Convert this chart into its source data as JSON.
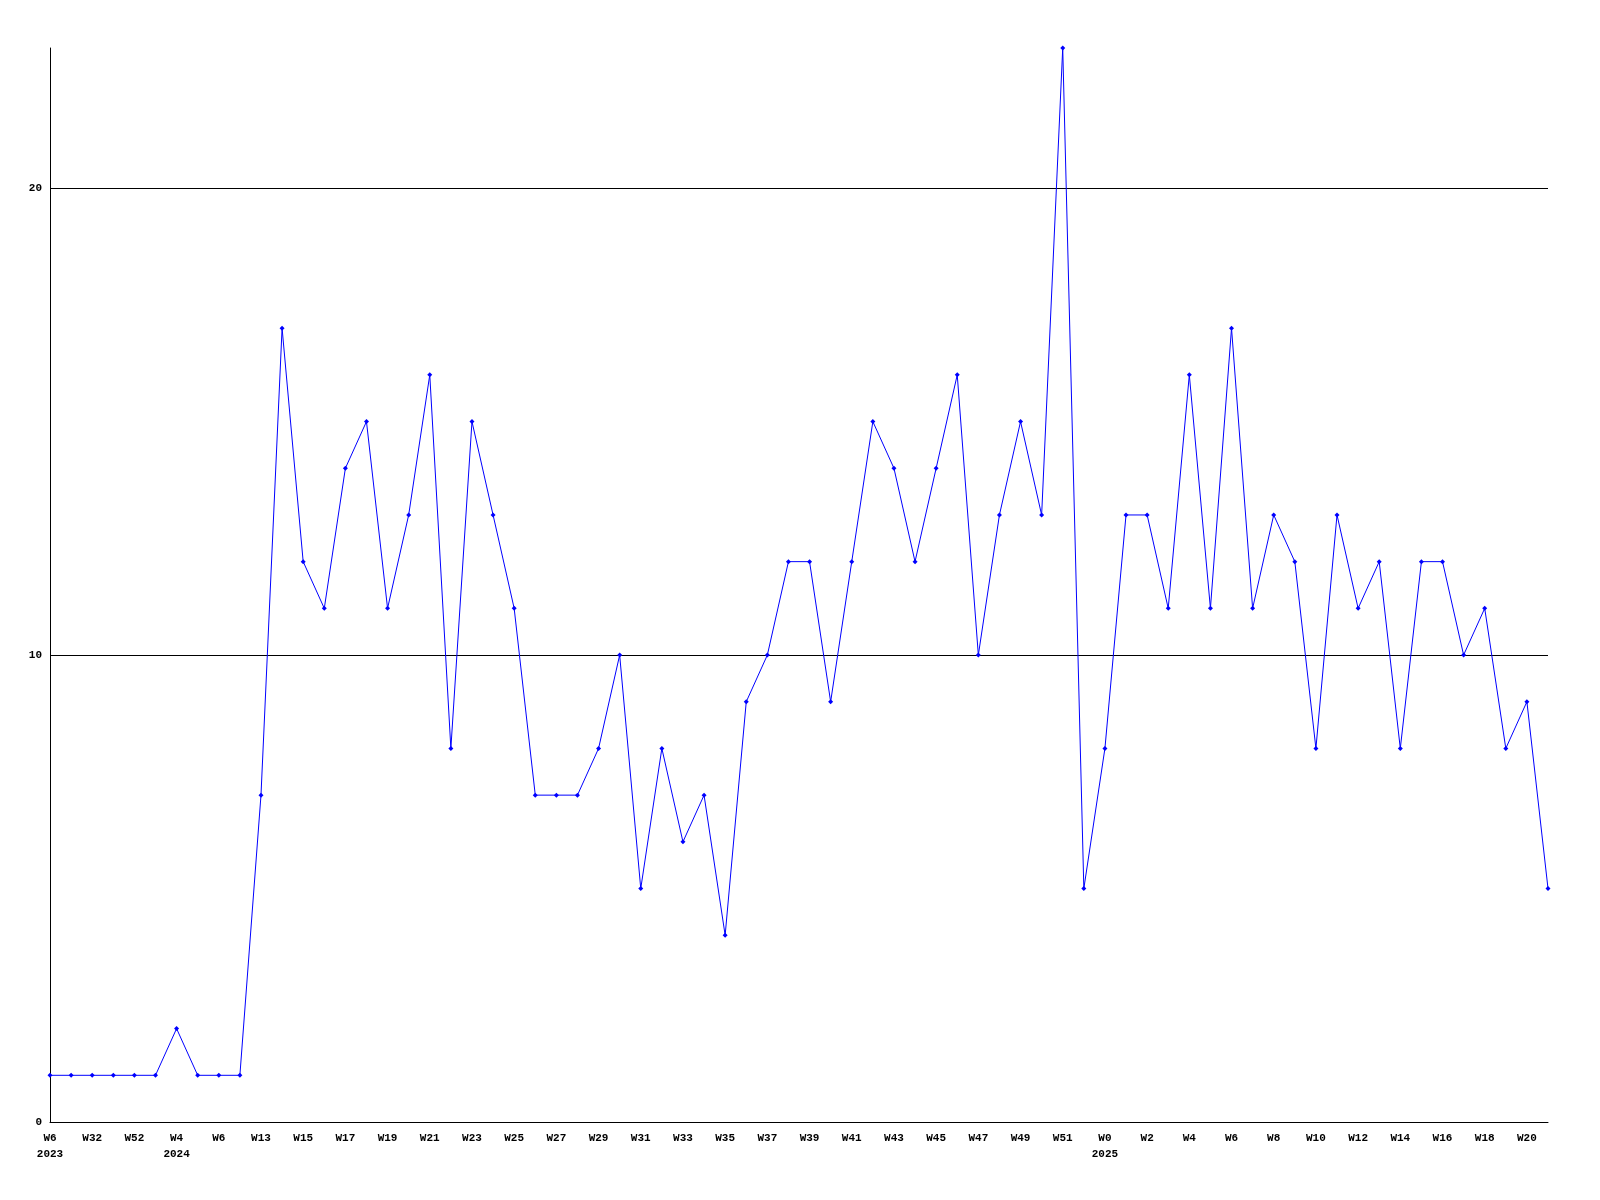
{
  "chart_data": {
    "type": "line",
    "categories": [
      "W6\n2023",
      null,
      "W32",
      null,
      "W52",
      null,
      "W4\n2024",
      null,
      "W6",
      null,
      "W13",
      null,
      "W15",
      null,
      "W17",
      null,
      "W19",
      null,
      "W21",
      null,
      "W23",
      null,
      "W25",
      null,
      "W27",
      null,
      "W29",
      null,
      "W31",
      null,
      "W33",
      null,
      "W35",
      null,
      "W37",
      null,
      "W39",
      null,
      "W41",
      null,
      "W43",
      null,
      "W45",
      null,
      "W47",
      null,
      "W49",
      null,
      "W51",
      null,
      "W0\n2025",
      null,
      "W2",
      null,
      "W4",
      null,
      "W6",
      null,
      "W8",
      null,
      "W10",
      null,
      "W12",
      null,
      "W14",
      null,
      "W16",
      null,
      "W18",
      null,
      "W20",
      null
    ],
    "series": [
      {
        "color": "#0000ff",
        "values": [
          1,
          1,
          1,
          1,
          1,
          1,
          2,
          1,
          1,
          1,
          7,
          17,
          12,
          11,
          14,
          15,
          11,
          13,
          16,
          8,
          15,
          13,
          11,
          7,
          7,
          7,
          8,
          10,
          5,
          8,
          6,
          7,
          4,
          9,
          10,
          12,
          12,
          9,
          12,
          15,
          14,
          12,
          14,
          16,
          10,
          13,
          15,
          13,
          23,
          5,
          8,
          13,
          13,
          11,
          16,
          11,
          17,
          11,
          13,
          12,
          8,
          13,
          11,
          12,
          8,
          12,
          12,
          10,
          11,
          8,
          9,
          5
        ]
      }
    ],
    "ylim": [
      0,
      23
    ],
    "yticks": [
      0,
      10,
      20
    ],
    "grid": "y",
    "marker": "diamond",
    "line_style": "solid"
  }
}
